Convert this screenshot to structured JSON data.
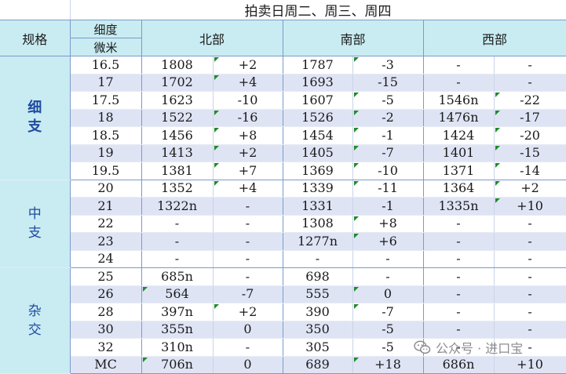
{
  "title": "拍卖日周二、周三、周四",
  "headers": {
    "spec": "规格",
    "fineness_line1": "细度",
    "fineness_line2": "微米",
    "north": "北部",
    "south": "南部",
    "west": "西部"
  },
  "groups": [
    {
      "label": "细支",
      "bold": true,
      "rows": [
        {
          "micron": "16.5",
          "north": [
            "1808",
            "+2"
          ],
          "south": [
            "1787",
            "-3"
          ],
          "west": [
            "-",
            "-"
          ]
        },
        {
          "micron": "17",
          "north": [
            "1702",
            "+4"
          ],
          "south": [
            "1693",
            "-15"
          ],
          "west": [
            "-",
            "-"
          ]
        },
        {
          "micron": "17.5",
          "north": [
            "1623",
            "-10"
          ],
          "south": [
            "1607",
            "-5"
          ],
          "west": [
            "1546n",
            "-22"
          ]
        },
        {
          "micron": "18",
          "north": [
            "1522",
            "-16"
          ],
          "south": [
            "1526",
            "-2"
          ],
          "west": [
            "1476n",
            "-17"
          ]
        },
        {
          "micron": "18.5",
          "north": [
            "1456",
            "+8"
          ],
          "south": [
            "1454",
            "-1"
          ],
          "west": [
            "1424",
            "-20"
          ]
        },
        {
          "micron": "19",
          "north": [
            "1413",
            "+2"
          ],
          "south": [
            "1405",
            "-7"
          ],
          "west": [
            "1401",
            "-15"
          ]
        },
        {
          "micron": "19.5",
          "north": [
            "1381",
            "+7"
          ],
          "south": [
            "1369",
            "-10"
          ],
          "west": [
            "1371",
            "-14"
          ]
        }
      ]
    },
    {
      "label": "中支",
      "bold": false,
      "rows": [
        {
          "micron": "20",
          "north": [
            "1352",
            "+4"
          ],
          "south": [
            "1339",
            "-11"
          ],
          "west": [
            "1364",
            "+2"
          ]
        },
        {
          "micron": "21",
          "north": [
            "1322n",
            "-"
          ],
          "south": [
            "1331",
            "-1"
          ],
          "west": [
            "1335n",
            "+10"
          ]
        },
        {
          "micron": "22",
          "north": [
            "-",
            "-"
          ],
          "south": [
            "1308",
            "+8"
          ],
          "west": [
            "-",
            "-"
          ]
        },
        {
          "micron": "23",
          "north": [
            "-",
            "-"
          ],
          "south": [
            "1277n",
            "+6"
          ],
          "west": [
            "-",
            "-"
          ]
        },
        {
          "micron": "24",
          "north": [
            "-",
            "-"
          ],
          "south": [
            "-",
            "-"
          ],
          "west": [
            "-",
            "-"
          ]
        }
      ]
    },
    {
      "label": "杂交",
      "bold": false,
      "rows": [
        {
          "micron": "25",
          "north": [
            "685n",
            "-"
          ],
          "south": [
            "698",
            "-"
          ],
          "west": [
            "-",
            "-"
          ]
        },
        {
          "micron": "26",
          "north": [
            "564",
            "-7"
          ],
          "south": [
            "555",
            "0"
          ],
          "west": [
            "-",
            "-"
          ]
        },
        {
          "micron": "28",
          "north": [
            "397n",
            "+2"
          ],
          "south": [
            "390",
            "-7"
          ],
          "west": [
            "-",
            "-"
          ]
        },
        {
          "micron": "30",
          "north": [
            "355n",
            "0"
          ],
          "south": [
            "350",
            "-5"
          ],
          "west": [
            "-",
            "-"
          ]
        },
        {
          "micron": "32",
          "north": [
            "310n",
            "-"
          ],
          "south": [
            "305",
            "-5"
          ],
          "west": [
            "-",
            "-"
          ]
        },
        {
          "micron": "MC",
          "north": [
            "706n",
            "0"
          ],
          "south": [
            "689",
            "+18"
          ],
          "west": [
            "686n",
            "+10"
          ]
        }
      ]
    }
  ],
  "watermark": {
    "text": "公众号 · 进口宝",
    "icon": "wechat-icon"
  },
  "colors": {
    "header_bg": "#c9ecf2",
    "alt_row_bg": "#dfe4f5",
    "spec_text": "#1f4aa0",
    "marker": "#1f8a2b"
  }
}
